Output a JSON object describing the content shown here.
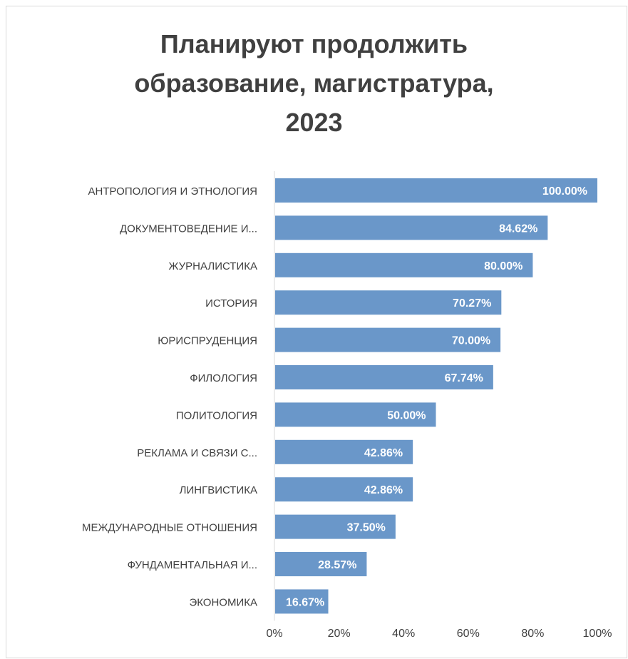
{
  "chart_data": {
    "type": "bar",
    "orientation": "horizontal",
    "title": "Планируют продолжить образование, магистратура, 2023",
    "title_lines": [
      "Планируют продолжить",
      "образование, магистратура,",
      "2023"
    ],
    "categories": [
      "АНТРОПОЛОГИЯ И ЭТНОЛОГИЯ",
      "ДОКУМЕНТОВЕДЕНИЕ И...",
      "ЖУРНАЛИСТИКА",
      "ИСТОРИЯ",
      "ЮРИСПРУДЕНЦИЯ",
      "ФИЛОЛОГИЯ",
      "ПОЛИТОЛОГИЯ",
      "РЕКЛАМА И СВЯЗИ С...",
      "ЛИНГВИСТИКА",
      "МЕЖДУНАРОДНЫЕ ОТНОШЕНИЯ",
      "ФУНДАМЕНТАЛЬНАЯ И...",
      "ЭКОНОМИКА"
    ],
    "values": [
      100.0,
      84.62,
      80.0,
      70.27,
      70.0,
      67.74,
      50.0,
      42.86,
      42.86,
      37.5,
      28.57,
      16.67
    ],
    "data_labels": [
      "100.00%",
      "84.62%",
      "80.00%",
      "70.27%",
      "70.00%",
      "67.74%",
      "50.00%",
      "42.86%",
      "42.86%",
      "37.50%",
      "28.57%",
      "16.67%"
    ],
    "x_ticks": [
      "0%",
      "20%",
      "40%",
      "60%",
      "80%",
      "100%"
    ],
    "xlim": [
      0,
      100
    ],
    "xlabel": "",
    "ylabel": "",
    "grid": false,
    "legend": "none",
    "bar_color": "#6a97c9",
    "axis_color": "#d9d9d9",
    "text_color": "#404040"
  }
}
